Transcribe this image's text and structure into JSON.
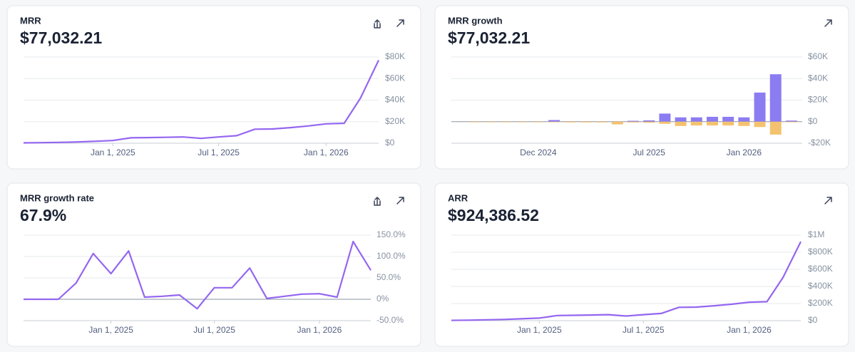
{
  "chart_data": [
    {
      "type": "line",
      "title": "MRR",
      "headline": "$77,032.21",
      "color": "#9466f0",
      "x": [
        "2024-08-01",
        "2024-09-01",
        "2024-10-01",
        "2024-11-01",
        "2024-12-01",
        "2025-01-01",
        "2025-02-01",
        "2025-03-01",
        "2025-04-01",
        "2025-05-01",
        "2025-06-01",
        "2025-07-01",
        "2025-08-01",
        "2025-09-01",
        "2025-10-01",
        "2025-11-01",
        "2025-12-01",
        "2026-01-01",
        "2026-02-01",
        "2026-03-01",
        "2026-04-01"
      ],
      "values": [
        300,
        500,
        800,
        1200,
        1800,
        2500,
        5000,
        5200,
        5500,
        5800,
        4500,
        5800,
        7000,
        13000,
        13200,
        14500,
        16000,
        18000,
        18500,
        42000,
        77032.21
      ],
      "xlim": [
        "2024-08-01",
        "2026-04-01"
      ],
      "xticks": [
        {
          "value": "2025-01-01",
          "label": "Jan 1, 2025"
        },
        {
          "value": "2025-07-01",
          "label": "Jul 1, 2025"
        },
        {
          "value": "2026-01-01",
          "label": "Jan 1, 2026"
        }
      ],
      "ylim": [
        0,
        80000
      ],
      "yticks": [
        {
          "value": 0,
          "label": "$0"
        },
        {
          "value": 20000,
          "label": "$20K"
        },
        {
          "value": 40000,
          "label": "$40K"
        },
        {
          "value": 60000,
          "label": "$60K"
        },
        {
          "value": 80000,
          "label": "$80K"
        }
      ],
      "grid": true
    },
    {
      "type": "bar",
      "title": "MRR growth",
      "headline": "$77,032.21",
      "categories": [
        null,
        null,
        null,
        null,
        "Dec 2024",
        null,
        null,
        null,
        null,
        null,
        null,
        "Jul 2025",
        null,
        null,
        null,
        null,
        null,
        "Jan 2026",
        null,
        null,
        null
      ],
      "series": [
        {
          "color": "#8b7cf2",
          "values": [
            0,
            0,
            0,
            0,
            0,
            1500,
            0,
            0,
            0,
            0,
            800,
            1200,
            7500,
            4000,
            4000,
            4500,
            4500,
            4000,
            27000,
            44000,
            1000
          ]
        },
        {
          "color": "#f4c26e",
          "values": [
            0,
            0,
            0,
            0,
            0,
            0,
            -700,
            -700,
            -700,
            -2500,
            -700,
            -1000,
            -2000,
            -4000,
            -3500,
            -3500,
            -3500,
            -4000,
            -5000,
            -12000,
            -500
          ]
        }
      ],
      "ylim": [
        -20000,
        60000
      ],
      "yticks": [
        {
          "value": -20000,
          "label": "-$20K"
        },
        {
          "value": 0,
          "label": "$0"
        },
        {
          "value": 20000,
          "label": "$20K"
        },
        {
          "value": 40000,
          "label": "$40K"
        },
        {
          "value": 60000,
          "label": "$60K"
        }
      ],
      "grid": true
    },
    {
      "type": "line",
      "title": "MRR growth rate",
      "headline": "67.9%",
      "color": "#9466f0",
      "x": [
        "2024-08-01",
        "2024-09-01",
        "2024-10-01",
        "2024-11-01",
        "2024-12-01",
        "2025-01-01",
        "2025-02-01",
        "2025-03-01",
        "2025-04-01",
        "2025-05-01",
        "2025-06-01",
        "2025-07-01",
        "2025-08-01",
        "2025-09-01",
        "2025-10-01",
        "2025-11-01",
        "2025-12-01",
        "2026-01-01",
        "2026-02-01",
        "2026-03-01",
        "2026-04-01"
      ],
      "values": [
        0,
        0,
        0,
        38,
        107,
        60,
        113,
        5,
        7,
        10,
        -22,
        27,
        27,
        73,
        2,
        7,
        12,
        13,
        5,
        135,
        67.9
      ],
      "xlim": [
        "2024-08-01",
        "2026-04-01"
      ],
      "xticks": [
        {
          "value": "2025-01-01",
          "label": "Jan 1, 2025"
        },
        {
          "value": "2025-07-01",
          "label": "Jul 1, 2025"
        },
        {
          "value": "2026-01-01",
          "label": "Jan 1, 2026"
        }
      ],
      "ylim": [
        -50,
        150
      ],
      "yticks": [
        {
          "value": -50,
          "label": "-50.0%"
        },
        {
          "value": 0,
          "label": "0%"
        },
        {
          "value": 50,
          "label": "50.0%"
        },
        {
          "value": 100,
          "label": "100.0%"
        },
        {
          "value": 150,
          "label": "150.0%"
        }
      ],
      "grid": true
    },
    {
      "type": "line",
      "title": "ARR",
      "headline": "$924,386.52",
      "color": "#9466f0",
      "x": [
        "2024-08-01",
        "2024-09-01",
        "2024-10-01",
        "2024-11-01",
        "2024-12-01",
        "2025-01-01",
        "2025-02-01",
        "2025-03-01",
        "2025-04-01",
        "2025-05-01",
        "2025-06-01",
        "2025-07-01",
        "2025-08-01",
        "2025-09-01",
        "2025-10-01",
        "2025-11-01",
        "2025-12-01",
        "2026-01-01",
        "2026-02-01",
        "2026-03-01",
        "2026-04-01"
      ],
      "values": [
        3600,
        6000,
        9600,
        14400,
        21600,
        30000,
        60000,
        62400,
        66000,
        69600,
        54000,
        69600,
        84000,
        156000,
        158400,
        174000,
        192000,
        216000,
        222000,
        504000,
        924386.52
      ],
      "xlim": [
        "2024-08-01",
        "2026-04-01"
      ],
      "xticks": [
        {
          "value": "2025-01-01",
          "label": "Jan 1, 2025"
        },
        {
          "value": "2025-07-01",
          "label": "Jul 1, 2025"
        },
        {
          "value": "2026-01-01",
          "label": "Jan 1, 2026"
        }
      ],
      "ylim": [
        0,
        1000000
      ],
      "yticks": [
        {
          "value": 0,
          "label": "$0"
        },
        {
          "value": 200000,
          "label": "$200K"
        },
        {
          "value": 400000,
          "label": "$400K"
        },
        {
          "value": 600000,
          "label": "$600K"
        },
        {
          "value": 800000,
          "label": "$800K"
        },
        {
          "value": 1000000,
          "label": "$1M"
        }
      ],
      "grid": true
    }
  ]
}
